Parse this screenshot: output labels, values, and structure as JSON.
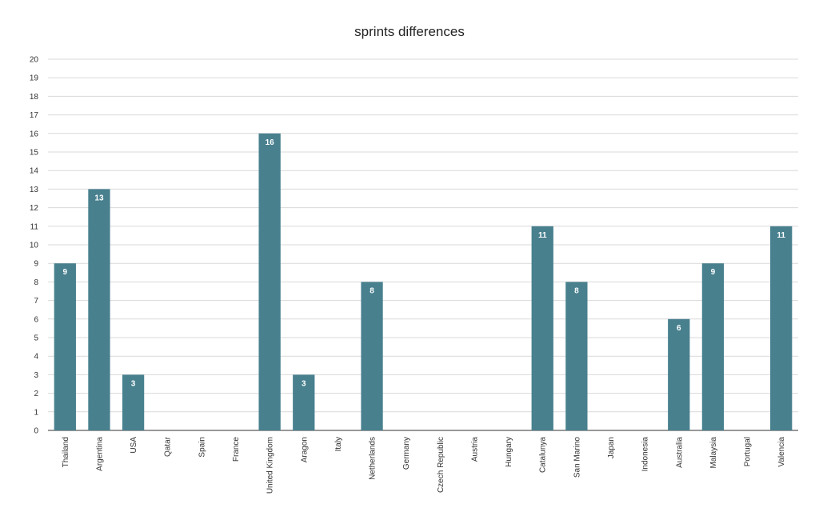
{
  "chart_data": {
    "type": "bar",
    "title": "sprints differences",
    "xlabel": "",
    "ylabel": "",
    "ylim": [
      0,
      20
    ],
    "yticks": [
      0,
      1,
      2,
      3,
      4,
      5,
      6,
      7,
      8,
      9,
      10,
      11,
      12,
      13,
      14,
      15,
      16,
      17,
      18,
      19,
      20
    ],
    "grid": true,
    "legend": "none",
    "bar_color": "#48808e",
    "categories": [
      "Thailand",
      "Argentina",
      "USA",
      "Qatar",
      "Spain",
      "France",
      "United Kingdom",
      "Aragon",
      "Italy",
      "Netherlands",
      "Germany",
      "Czech Republic",
      "Austria",
      "Hungary",
      "Catalunya",
      "San Marino",
      "Japan",
      "Indonesia",
      "Australia",
      "Malaysia",
      "Portugal",
      "Valencia"
    ],
    "values": [
      9,
      13,
      3,
      null,
      null,
      null,
      16,
      3,
      null,
      8,
      null,
      null,
      null,
      null,
      11,
      8,
      null,
      null,
      6,
      9,
      null,
      11
    ]
  }
}
